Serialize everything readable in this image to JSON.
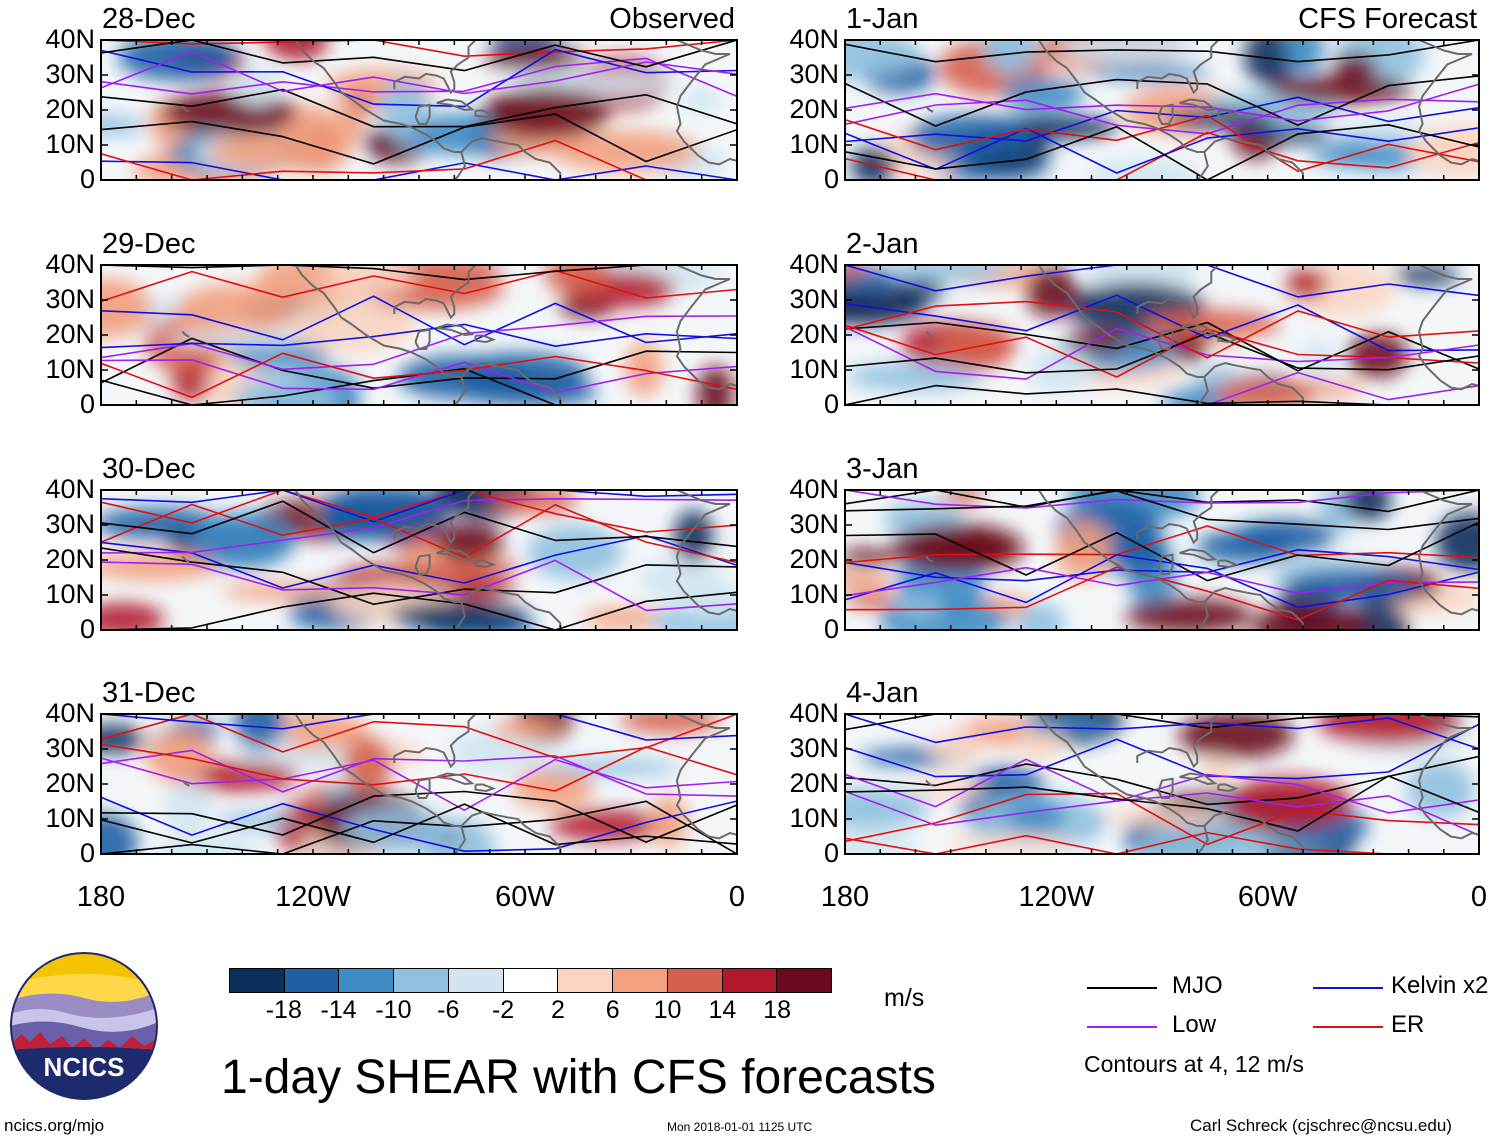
{
  "title": "1-day SHEAR with CFS forecasts",
  "observed_label": "Observed",
  "forecast_label": "CFS Forecast",
  "panels_observed": [
    "28-Dec",
    "29-Dec",
    "30-Dec",
    "31-Dec"
  ],
  "panels_forecast": [
    "1-Jan",
    "2-Jan",
    "3-Jan",
    "4-Jan"
  ],
  "lat_ticks": [
    "40N",
    "30N",
    "20N",
    "10N",
    "0"
  ],
  "lon_ticks": [
    "180",
    "120W",
    "60W",
    "0"
  ],
  "colorbar": {
    "ticks": [
      "-18",
      "-14",
      "-10",
      "-6",
      "-2",
      "2",
      "6",
      "10",
      "14",
      "18"
    ],
    "colors": [
      "#0b2f5c",
      "#1f5fa4",
      "#3f8cc4",
      "#8fc0df",
      "#d2e5f1",
      "#ffffff",
      "#fbd5c2",
      "#f2a07e",
      "#d6604d",
      "#b2182b",
      "#6b0a1f"
    ],
    "units": "m/s"
  },
  "legend": {
    "items": [
      {
        "label": "MJO",
        "color": "#000000"
      },
      {
        "label": "Kelvin x2",
        "color": "#1010e0"
      },
      {
        "label": "Low",
        "color": "#a020f0"
      },
      {
        "label": "ER",
        "color": "#e01010"
      }
    ],
    "note": "Contours at 4, 12 m/s"
  },
  "logo_text": "NCICS",
  "footer": {
    "left": "ncics.org/mjo",
    "center": "Mon 2018-01-01 1125 UTC",
    "right": "Carl Schreck (cjschrec@ncsu.edu)"
  }
}
